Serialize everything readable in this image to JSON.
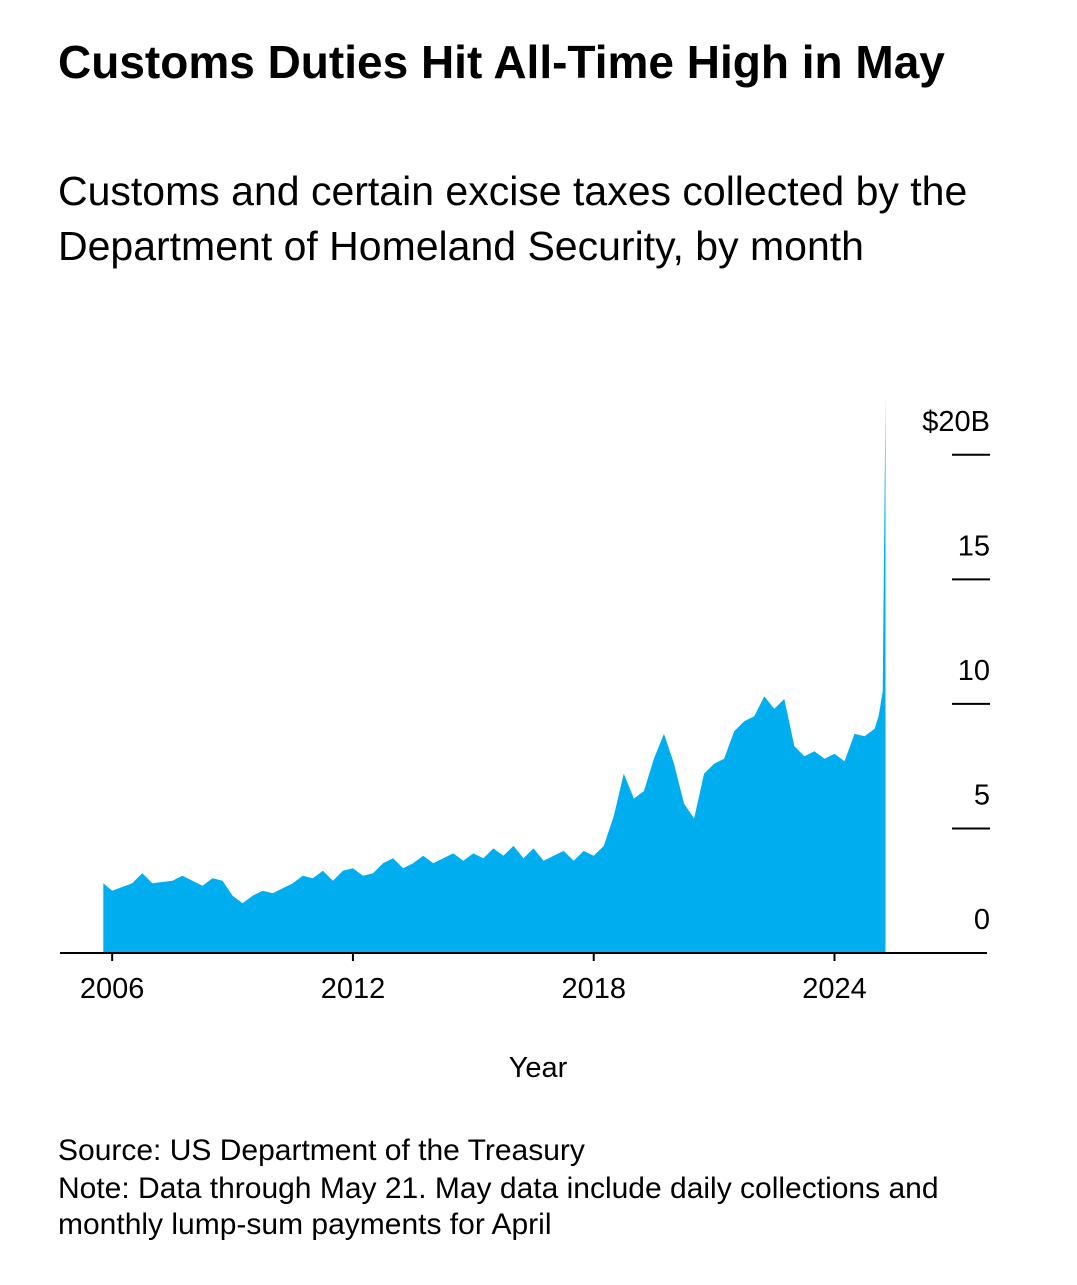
{
  "chart_data": {
    "type": "area",
    "title": "Customs Duties Hit All-Time High in May",
    "subtitle": "Customs and certain excise taxes collected by the Department of Homeland Security, by month",
    "x_label": "Year",
    "source": "Source: US Department of the Treasury",
    "note": "Note: Data through May 21. May data include daily collections and monthly lump-sum payments for April",
    "color": "#00aef0",
    "xlim": [
      2004.7,
      2027.8
    ],
    "xticks": [
      2006,
      2012,
      2018,
      2024
    ],
    "ylim": [
      0,
      22.4
    ],
    "yticks": [
      0,
      5,
      10,
      15,
      {
        "value": 20,
        "label": "$20B"
      }
    ],
    "x": [
      2005.78,
      2006.0,
      2006.5,
      2006.75,
      2007.0,
      2007.5,
      2007.75,
      2008.0,
      2008.25,
      2008.5,
      2008.75,
      2009.0,
      2009.25,
      2009.5,
      2009.75,
      2010.0,
      2010.5,
      2010.75,
      2011.0,
      2011.25,
      2011.5,
      2011.75,
      2012.0,
      2012.25,
      2012.5,
      2012.75,
      2013.0,
      2013.25,
      2013.5,
      2013.75,
      2014.0,
      2014.25,
      2014.5,
      2014.75,
      2015.0,
      2015.25,
      2015.5,
      2015.75,
      2016.0,
      2016.25,
      2016.5,
      2016.75,
      2017.0,
      2017.25,
      2017.5,
      2017.75,
      2018.0,
      2018.25,
      2018.5,
      2018.75,
      2019.0,
      2019.25,
      2019.5,
      2019.75,
      2020.0,
      2020.25,
      2020.5,
      2020.75,
      2021.0,
      2021.25,
      2021.5,
      2021.75,
      2022.0,
      2022.25,
      2022.5,
      2022.75,
      2023.0,
      2023.25,
      2023.5,
      2023.75,
      2024.0,
      2024.25,
      2024.5,
      2024.75,
      2025.0,
      2025.1,
      2025.2,
      2025.27
    ],
    "values": [
      2.8,
      2.5,
      2.8,
      3.2,
      2.8,
      2.9,
      3.1,
      2.9,
      2.7,
      3.0,
      2.9,
      2.3,
      2.0,
      2.3,
      2.5,
      2.4,
      2.8,
      3.1,
      3.0,
      3.3,
      2.9,
      3.3,
      3.4,
      3.1,
      3.2,
      3.6,
      3.8,
      3.4,
      3.6,
      3.9,
      3.6,
      3.8,
      4.0,
      3.7,
      4.0,
      3.8,
      4.2,
      3.9,
      4.3,
      3.8,
      4.2,
      3.7,
      3.9,
      4.1,
      3.7,
      4.1,
      3.9,
      4.3,
      5.5,
      7.2,
      6.2,
      6.5,
      7.8,
      8.8,
      7.6,
      6.0,
      5.4,
      7.2,
      7.6,
      7.8,
      8.9,
      9.3,
      9.5,
      10.3,
      9.8,
      10.2,
      8.3,
      7.9,
      8.1,
      7.8,
      8.0,
      7.7,
      8.8,
      8.7,
      9.0,
      9.5,
      10.5,
      22.3
    ]
  }
}
